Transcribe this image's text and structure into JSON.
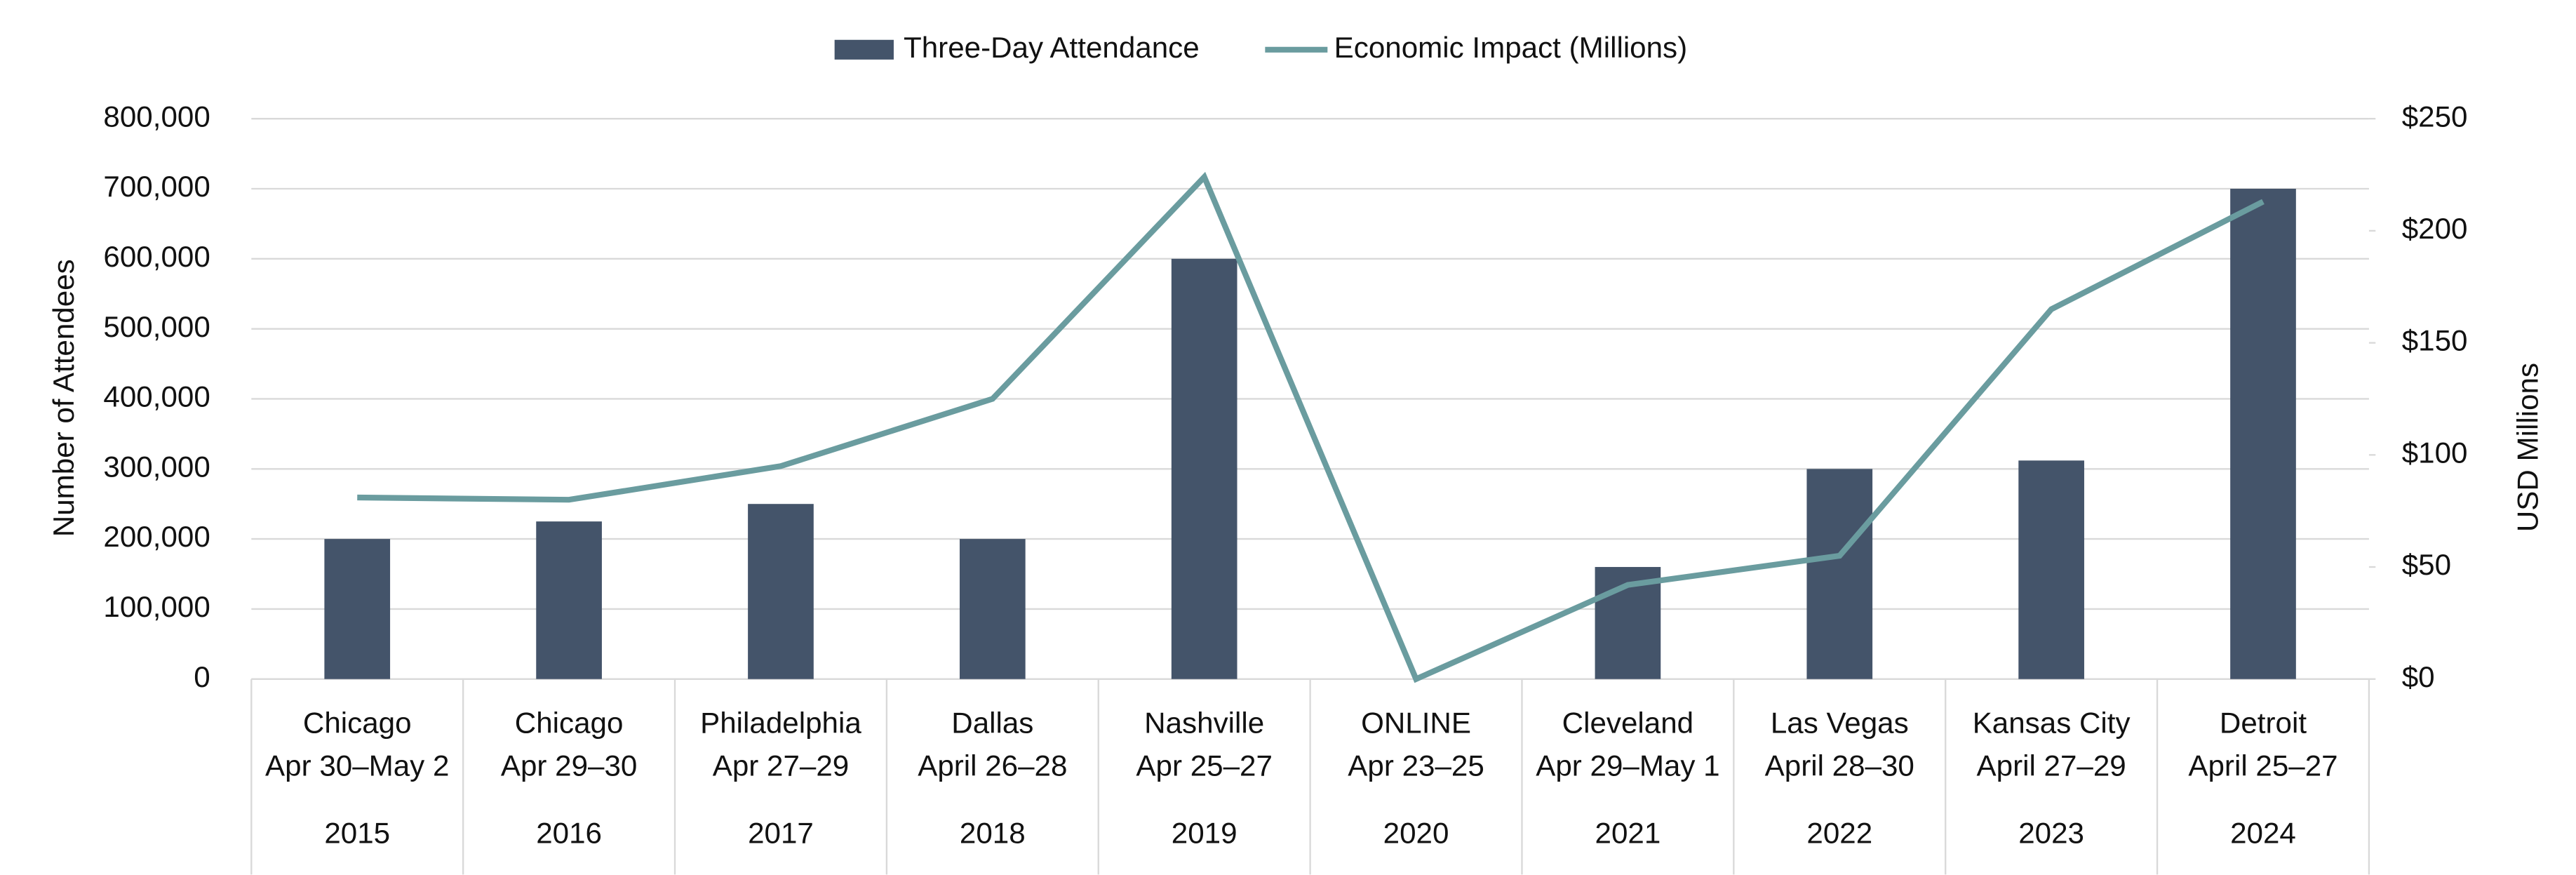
{
  "chart_data": {
    "type": "bar_line",
    "categories": [
      "2015",
      "2016",
      "2017",
      "2018",
      "2019",
      "2020",
      "2021",
      "2022",
      "2023",
      "2024"
    ],
    "locations": [
      "Chicago",
      "Chicago",
      "Philadelphia",
      "Dallas",
      "Nashville",
      "ONLINE",
      "Cleveland",
      "Las Vegas",
      "Kansas City",
      "Detroit"
    ],
    "dates": [
      "Apr 30–May 2",
      "Apr 29–30",
      "Apr 27–29",
      "April 26–28",
      "Apr 25–27",
      "Apr 23–25",
      "Apr 29–May 1",
      "April 28–30",
      "April 27–29",
      "April 25–27"
    ],
    "series": [
      {
        "name": "Three-Day Attendance",
        "color": "#44546a",
        "values": [
          200000,
          225000,
          250000,
          200000,
          600000,
          null,
          160000,
          300000,
          312000,
          700000
        ]
      },
      {
        "name": "Economic Impact (Millions)",
        "color": "#6a9c9f",
        "axis": "y2",
        "values": [
          81,
          80,
          95,
          125,
          224,
          0,
          42,
          55,
          165,
          213
        ]
      }
    ],
    "ylabel": "Number of Attendees",
    "y2label": "USD Millions",
    "ylim": [
      0,
      800000
    ],
    "yticks": [
      0,
      {
        "value": 100000,
        "label": "100,000"
      },
      {
        "value": 200000,
        "label": "200,000"
      },
      {
        "value": 300000,
        "label": "300,000"
      },
      {
        "value": 400000,
        "label": "400,000"
      },
      {
        "value": 500000,
        "label": "500,000"
      },
      {
        "value": 600000,
        "label": "600,000"
      },
      {
        "value": 700000,
        "label": "700,000"
      },
      {
        "value": 800000,
        "label": "800,000"
      }
    ],
    "y2lim": [
      0,
      250
    ],
    "y2ticks": [
      {
        "value": 0,
        "label": "$0"
      },
      {
        "value": 50,
        "label": "$50"
      },
      {
        "value": 100,
        "label": "$100"
      },
      {
        "value": 150,
        "label": "$150"
      },
      {
        "value": 200,
        "label": "$200"
      },
      {
        "value": 250,
        "label": "$250"
      }
    ],
    "grid": true,
    "legend": "top"
  }
}
